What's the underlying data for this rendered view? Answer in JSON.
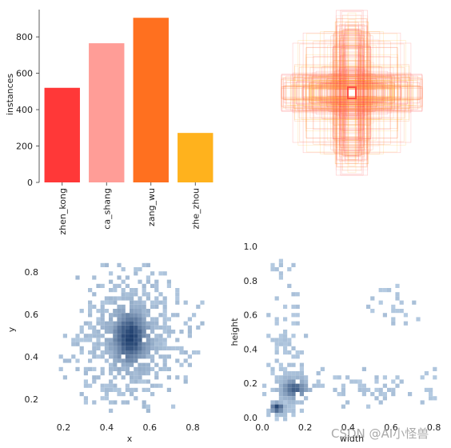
{
  "watermark": "CSDN @AI小怪兽",
  "chart_data": [
    {
      "type": "bar",
      "categories": [
        "zhen_kong",
        "ca_shang",
        "zang_wu",
        "zhe_zhou"
      ],
      "values": [
        520,
        765,
        905,
        272
      ],
      "colors": [
        "#ff3838",
        "#ff9d97",
        "#ff701f",
        "#ffb21d"
      ],
      "ylabel": "instances",
      "ylim": [
        0,
        950
      ],
      "yticks": [
        0,
        200,
        400,
        600,
        800
      ]
    },
    {
      "type": "box-overlay",
      "description_visible": "overlay of all box outlines centred on the image centre",
      "colors": [
        "#ff3838",
        "#ff9d97",
        "#ff701f",
        "#ffb21d"
      ]
    },
    {
      "type": "heatmap",
      "xlabel": "x",
      "ylabel": "y",
      "xlim": [
        0.12,
        0.9
      ],
      "ylim": [
        0.12,
        0.92
      ],
      "xticks": [
        "0.2",
        "0.4",
        "0.6",
        "0.8"
      ],
      "yticks": [
        "0.2",
        "0.4",
        "0.6",
        "0.8"
      ],
      "peak": {
        "x": 0.5,
        "y": 0.5
      },
      "color": "#2f6fb5"
    },
    {
      "type": "heatmap",
      "xlabel": "width",
      "ylabel": "height",
      "xlim": [
        0.0,
        0.82
      ],
      "ylim": [
        0.0,
        1.0
      ],
      "xticks": [
        "0.0",
        "0.2",
        "0.4",
        "0.6",
        "0.8"
      ],
      "yticks": [
        "0.0",
        "0.2",
        "0.4",
        "0.6",
        "0.8",
        "1.0"
      ],
      "peak": {
        "x": 0.06,
        "y": 0.08
      },
      "color": "#2f6fb5"
    }
  ]
}
